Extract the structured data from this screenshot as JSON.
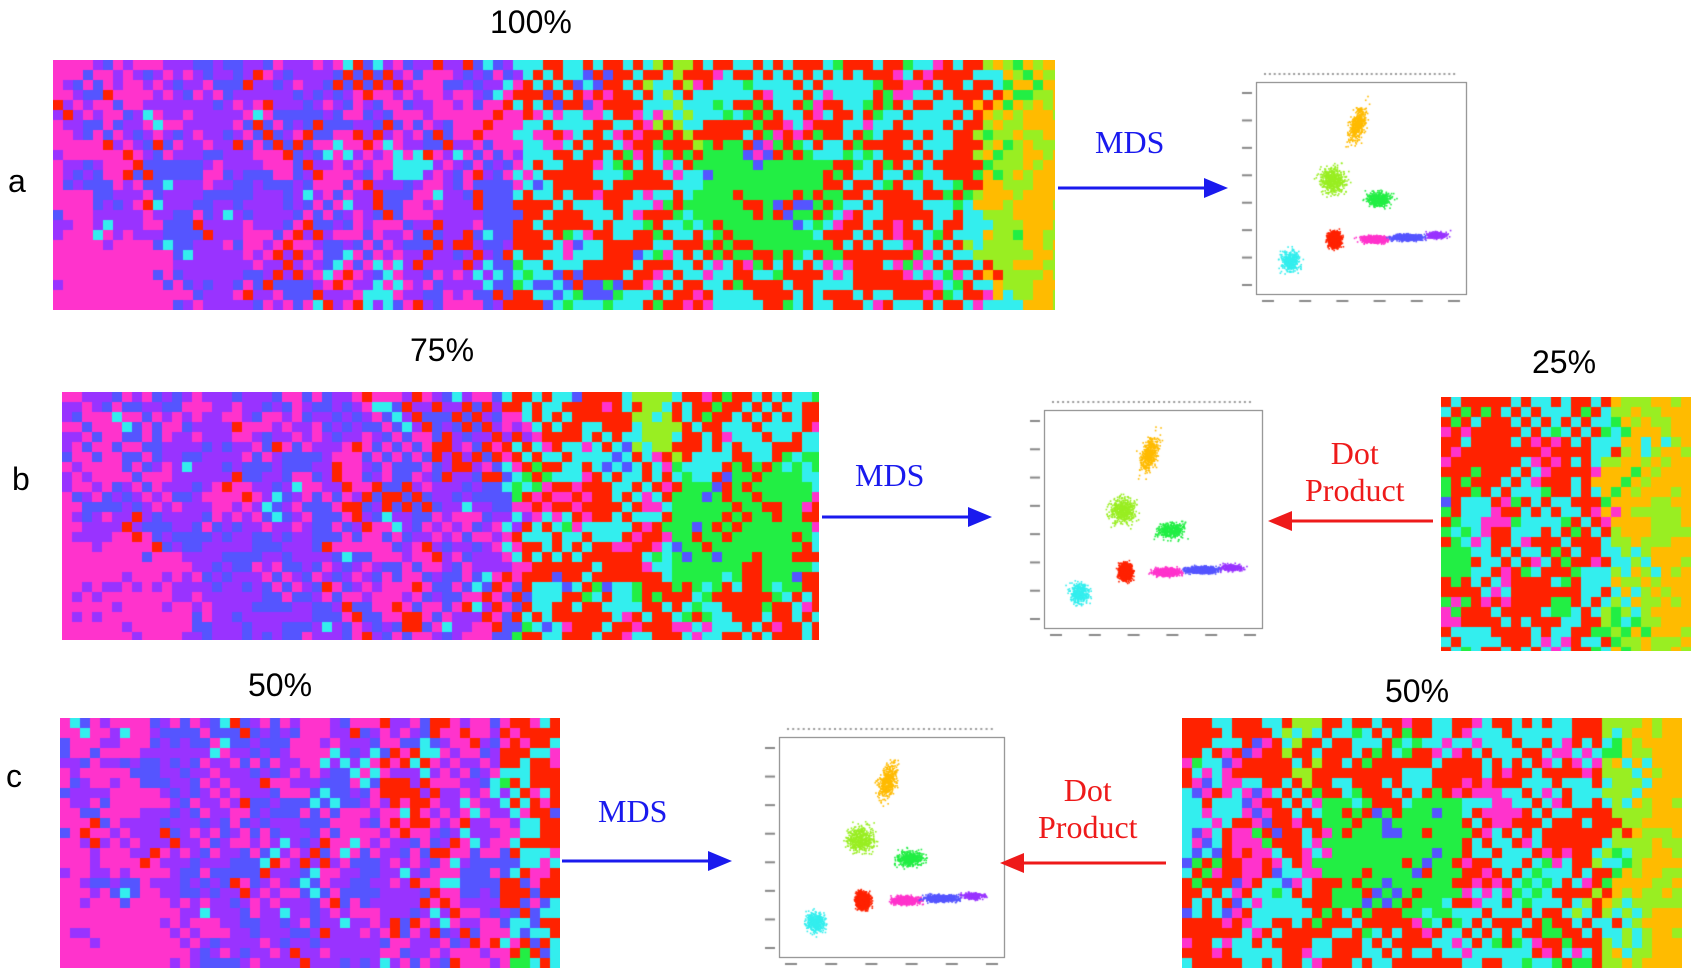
{
  "rows": [
    {
      "label": "a"
    },
    {
      "label": "b"
    },
    {
      "label": "c"
    }
  ],
  "percent_labels": {
    "row_a": "100%",
    "row_b_left": "75%",
    "row_b_right": "25%",
    "row_c_left": "50%",
    "row_c_right": "50%"
  },
  "arrows": {
    "mds_label": "MDS",
    "dot_line1": "Dot",
    "dot_line2": "Product"
  },
  "colors": {
    "mds": "#1a1aee",
    "dot_product": "#ee1a1a",
    "magenta": "#ff33cc",
    "violet": "#9933ff",
    "blue": "#5555ff",
    "red": "#ff2200",
    "cyan": "#33eeee",
    "green": "#22ee44",
    "yellow_green": "#99ee22",
    "orange": "#ffbb00"
  }
}
